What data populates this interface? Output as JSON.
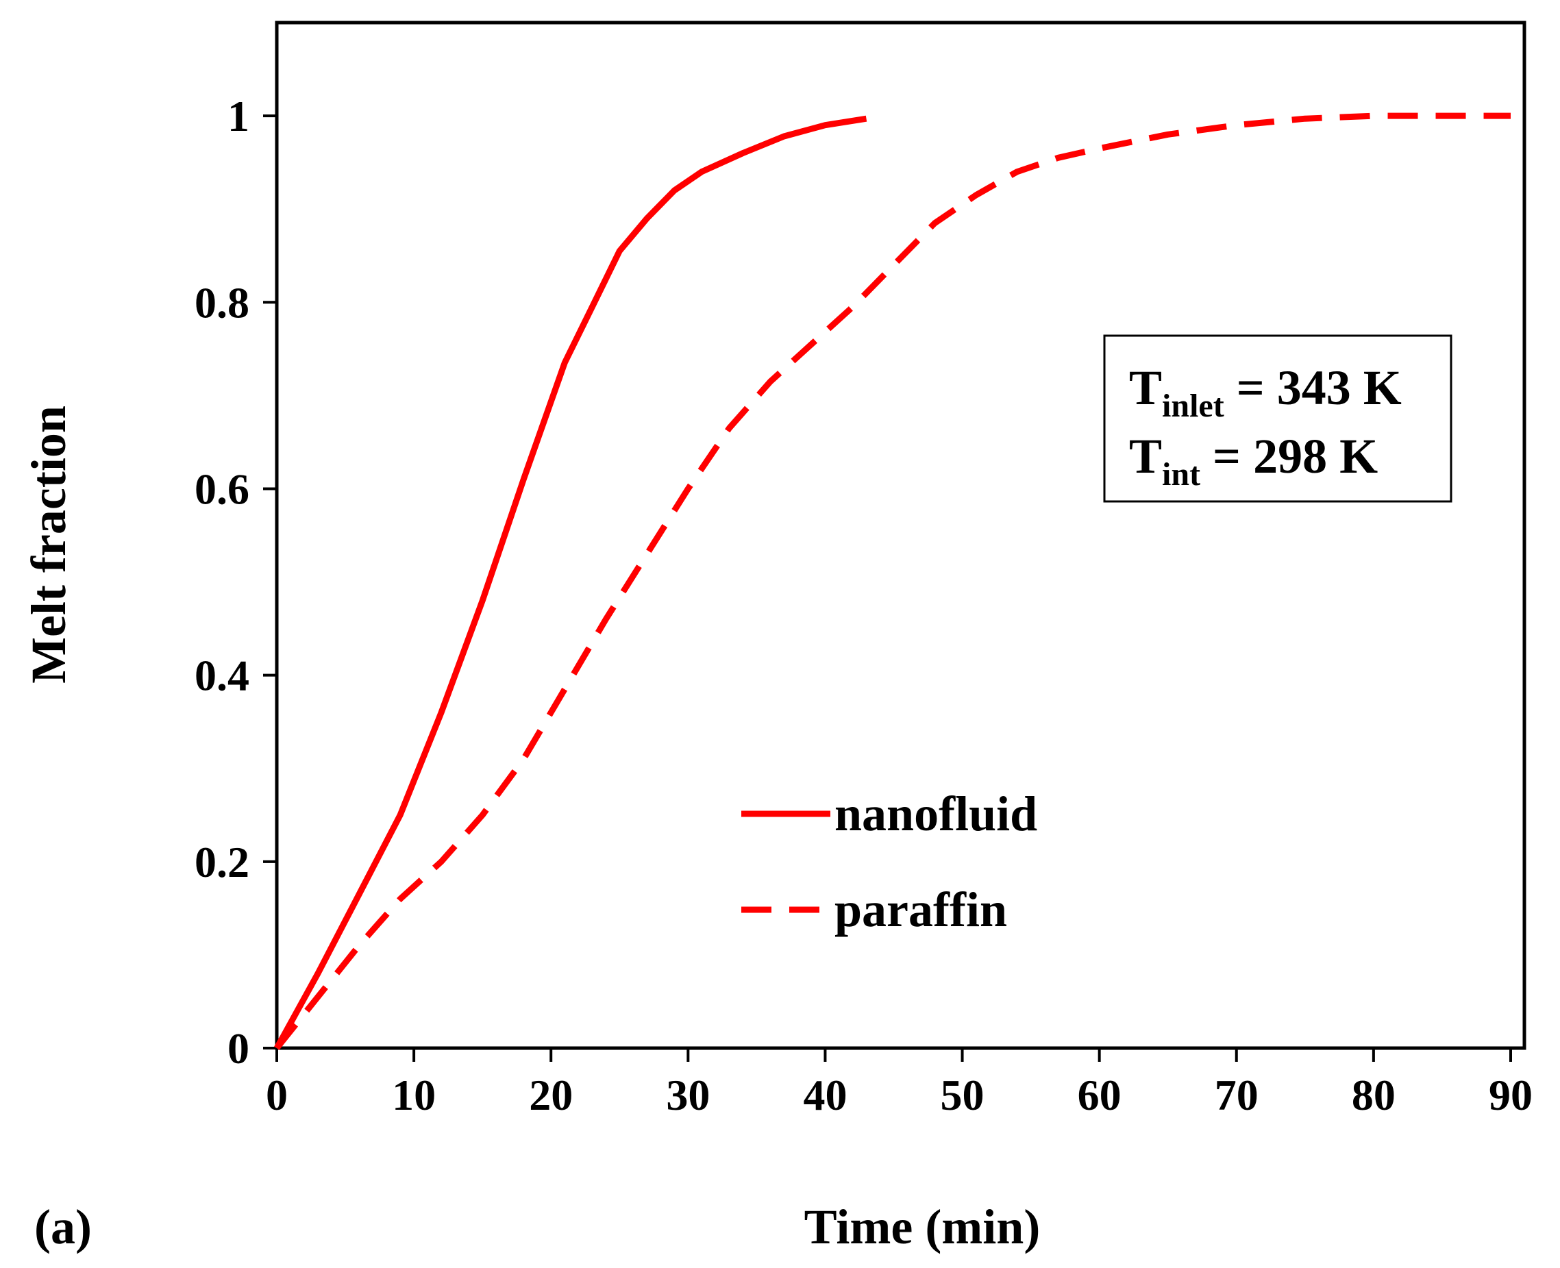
{
  "chart_data": {
    "type": "line",
    "panel_label": "(a)",
    "xlabel": "Time (min)",
    "ylabel": "Melt fraction",
    "xlim": [
      0,
      91
    ],
    "ylim": [
      0,
      1.1
    ],
    "x_ticks": [
      0,
      10,
      20,
      30,
      40,
      50,
      60,
      70,
      80,
      90
    ],
    "x_tick_labels": [
      "0",
      "10",
      "20",
      "30",
      "40",
      "50",
      "60",
      "70",
      "80",
      "90"
    ],
    "y_ticks": [
      0,
      0.2,
      0.4,
      0.6,
      0.8,
      1
    ],
    "y_tick_labels": [
      "0",
      "0.2",
      "0.4",
      "0.6",
      "0.8",
      "1"
    ],
    "grid": false,
    "legend_position": "center-right",
    "color": "#ff0000",
    "series": [
      {
        "name": "nanofluid",
        "style": "solid",
        "x": [
          0,
          3,
          6,
          9,
          12,
          15,
          18,
          21,
          23,
          25,
          27,
          29,
          31,
          34,
          37,
          40,
          43
        ],
        "y": [
          0,
          0.08,
          0.165,
          0.25,
          0.36,
          0.48,
          0.61,
          0.735,
          0.795,
          0.855,
          0.89,
          0.92,
          0.94,
          0.96,
          0.978,
          0.99,
          0.997
        ]
      },
      {
        "name": "paraffin",
        "style": "dashed",
        "x": [
          0,
          3,
          6,
          9,
          12,
          15,
          18,
          21,
          24,
          27,
          30,
          33,
          36,
          39,
          42,
          45,
          48,
          51,
          54,
          57,
          60,
          65,
          70,
          75,
          80,
          85,
          90
        ],
        "y": [
          0,
          0.055,
          0.11,
          0.16,
          0.2,
          0.25,
          0.31,
          0.385,
          0.46,
          0.53,
          0.6,
          0.665,
          0.715,
          0.755,
          0.795,
          0.84,
          0.885,
          0.915,
          0.94,
          0.955,
          0.965,
          0.98,
          0.99,
          0.997,
          1.0,
          1.0,
          1.0
        ]
      }
    ],
    "annotation": {
      "line1": {
        "symbol": "T",
        "subscript": "inlet",
        "text": " = 343 K"
      },
      "line2": {
        "symbol": "T",
        "subscript": "int",
        "text": " = 298 K"
      }
    }
  }
}
